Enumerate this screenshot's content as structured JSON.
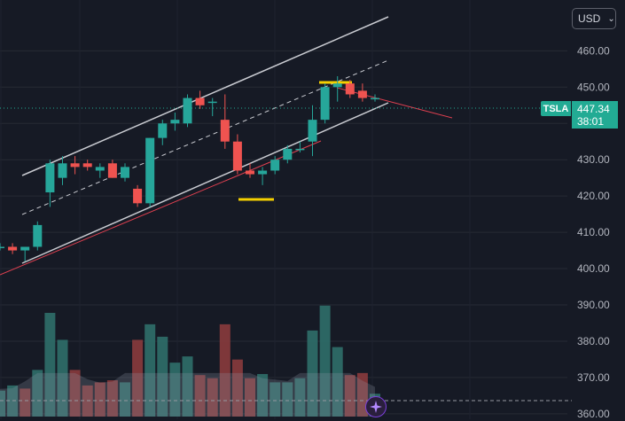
{
  "header": {
    "currency": "USD"
  },
  "price_marker": {
    "symbol": "TSLA",
    "price": "447.34",
    "countdown": "38:01"
  },
  "colors": {
    "background": "#161a25",
    "up": "#26a69a",
    "down": "#ef5350",
    "volume_up": "#2f6f6a",
    "volume_down": "#8a3b3d",
    "channel": "#c9cbd1",
    "trendline": "#e04050",
    "highlight": "#f5d000"
  },
  "icons": {
    "assistant": "sparkle-icon",
    "dropdown": "chevron-down-icon"
  },
  "chart_data": {
    "type": "candlestick",
    "y_axis": {
      "ticks": [
        "460.00",
        "450.00",
        "440.00",
        "430.00",
        "420.00",
        "410.00",
        "400.00",
        "390.00",
        "380.00",
        "370.00",
        "360.00"
      ],
      "range": [
        358.5,
        474
      ]
    },
    "candles": [
      {
        "o": 406,
        "h": 407,
        "l": 405,
        "c": 406
      },
      {
        "o": 406,
        "h": 407,
        "l": 404,
        "c": 405
      },
      {
        "o": 405,
        "h": 406,
        "l": 402,
        "c": 406
      },
      {
        "o": 406,
        "h": 413,
        "l": 405,
        "c": 412
      },
      {
        "o": 421,
        "h": 430,
        "l": 417,
        "c": 429
      },
      {
        "o": 425,
        "h": 431,
        "l": 423,
        "c": 429
      },
      {
        "o": 429,
        "h": 431,
        "l": 426,
        "c": 428
      },
      {
        "o": 429,
        "h": 430,
        "l": 427,
        "c": 428
      },
      {
        "o": 427,
        "h": 429,
        "l": 425,
        "c": 428
      },
      {
        "o": 429,
        "h": 430,
        "l": 425,
        "c": 425
      },
      {
        "o": 425,
        "h": 429,
        "l": 424,
        "c": 428
      },
      {
        "o": 422,
        "h": 423,
        "l": 417,
        "c": 418
      },
      {
        "o": 418,
        "h": 436,
        "l": 417,
        "c": 436
      },
      {
        "o": 436,
        "h": 441,
        "l": 434,
        "c": 440
      },
      {
        "o": 440,
        "h": 443,
        "l": 438,
        "c": 441
      },
      {
        "o": 440,
        "h": 448,
        "l": 439,
        "c": 447
      },
      {
        "o": 447,
        "h": 449,
        "l": 444,
        "c": 445
      },
      {
        "o": 446,
        "h": 447,
        "l": 442,
        "c": 446
      },
      {
        "o": 441,
        "h": 448,
        "l": 433,
        "c": 435
      },
      {
        "o": 435,
        "h": 437,
        "l": 426,
        "c": 427
      },
      {
        "o": 427,
        "h": 429,
        "l": 425,
        "c": 426
      },
      {
        "o": 426,
        "h": 428,
        "l": 423,
        "c": 427
      },
      {
        "o": 427,
        "h": 431,
        "l": 426,
        "c": 430
      },
      {
        "o": 430,
        "h": 434,
        "l": 429,
        "c": 433
      },
      {
        "o": 433,
        "h": 435,
        "l": 432,
        "c": 433
      },
      {
        "o": 435,
        "h": 445,
        "l": 431,
        "c": 441
      },
      {
        "o": 441,
        "h": 451,
        "l": 440,
        "c": 450
      },
      {
        "o": 450,
        "h": 453,
        "l": 446,
        "c": 451
      },
      {
        "o": 451,
        "h": 452,
        "l": 447,
        "c": 448
      },
      {
        "o": 449,
        "h": 451,
        "l": 446,
        "c": 447
      },
      {
        "o": 447,
        "h": 448,
        "l": 446,
        "c": 447
      }
    ],
    "volume_bars": [
      {
        "v": 0.25,
        "up": true
      },
      {
        "v": 0.3,
        "up": true
      },
      {
        "v": 0.27,
        "up": false
      },
      {
        "v": 0.45,
        "up": true
      },
      {
        "v": 1.0,
        "up": true
      },
      {
        "v": 0.74,
        "up": true
      },
      {
        "v": 0.45,
        "up": false
      },
      {
        "v": 0.3,
        "up": false
      },
      {
        "v": 0.33,
        "up": false
      },
      {
        "v": 0.35,
        "up": false
      },
      {
        "v": 0.33,
        "up": true
      },
      {
        "v": 0.74,
        "up": false
      },
      {
        "v": 0.89,
        "up": true
      },
      {
        "v": 0.77,
        "up": true
      },
      {
        "v": 0.52,
        "up": true
      },
      {
        "v": 0.58,
        "up": true
      },
      {
        "v": 0.4,
        "up": false
      },
      {
        "v": 0.37,
        "up": false
      },
      {
        "v": 0.89,
        "up": false
      },
      {
        "v": 0.55,
        "up": false
      },
      {
        "v": 0.37,
        "up": false
      },
      {
        "v": 0.41,
        "up": true
      },
      {
        "v": 0.33,
        "up": true
      },
      {
        "v": 0.33,
        "up": true
      },
      {
        "v": 0.37,
        "up": true
      },
      {
        "v": 0.83,
        "up": true
      },
      {
        "v": 1.07,
        "up": true
      },
      {
        "v": 0.67,
        "up": true
      },
      {
        "v": 0.4,
        "up": false
      },
      {
        "v": 0.42,
        "up": false
      },
      {
        "v": 0.22,
        "up": true
      }
    ],
    "grid": true
  }
}
